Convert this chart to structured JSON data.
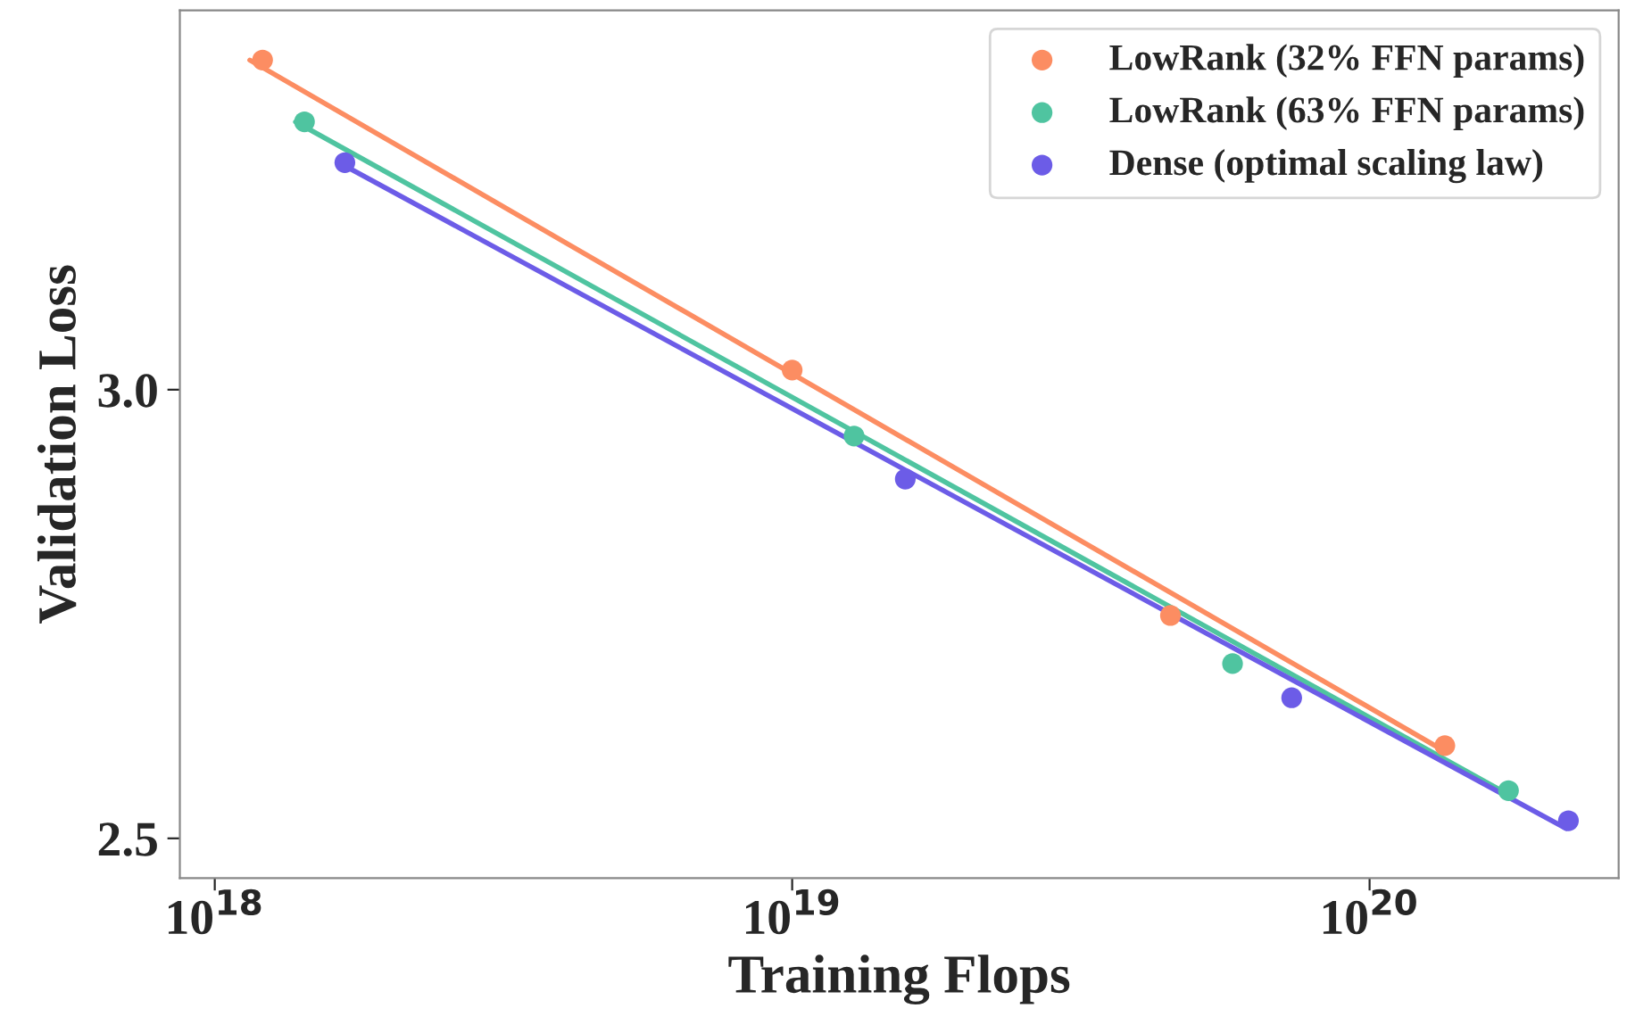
{
  "chart_data": {
    "type": "scatter",
    "xlabel": "Training Flops",
    "ylabel": "Validation Loss",
    "log": "xy",
    "grid": false,
    "legend": "top right",
    "xlim": [
      8.7e+17,
      2.7e+20
    ],
    "ylim": [
      2.46,
      3.5
    ],
    "xticks": [
      {
        "value": 1e+18,
        "label": "10$^{18}$"
      },
      {
        "value": 1e+19,
        "label": "10$^{19}$"
      },
      {
        "value": 1e+20,
        "label": "10$^{20}$"
      }
    ],
    "yticks": [
      {
        "value": 2.5,
        "label": "2.5"
      },
      {
        "value": 3.0,
        "label": "3.0"
      }
    ],
    "series": [
      {
        "name": "LowRank (32% FFN params)",
        "color": "#fc8d62",
        "marker": "circle",
        "x": [
          1.21e+18,
          1e+19,
          4.52e+19,
          1.35e+20
        ],
        "values": [
          3.43,
          3.024,
          2.737,
          2.596
        ]
      },
      {
        "name": "LowRank (63% FFN params)",
        "color": "#4fc4a0",
        "marker": "circle",
        "x": [
          1.43e+18,
          1.28e+19,
          5.79e+19,
          1.74e+20
        ],
        "values": [
          3.345,
          2.944,
          2.684,
          2.549
        ]
      },
      {
        "name": "Dense (optimal scaling law)",
        "color": "#6c5ce7",
        "marker": "circle",
        "x": [
          1.68e+18,
          1.57e+19,
          7.33e+19,
          2.21e+20
        ],
        "values": [
          3.29,
          2.893,
          2.647,
          2.518
        ]
      },
      {
        "color": "#fc8d62",
        "type": "line",
        "line_style": "solid",
        "x": [
          1.15e+18,
          1.35e+20
        ],
        "values": [
          3.43,
          2.59
        ]
      },
      {
        "color": "#4fc4a0",
        "type": "line",
        "line_style": "solid",
        "x": [
          1.38e+18,
          1.74e+20
        ],
        "values": [
          3.345,
          2.545
        ]
      },
      {
        "color": "#6c5ce7",
        "type": "line",
        "line_style": "solid",
        "x": [
          1.64e+18,
          2.19e+20
        ],
        "values": [
          3.29,
          2.51
        ]
      }
    ]
  }
}
